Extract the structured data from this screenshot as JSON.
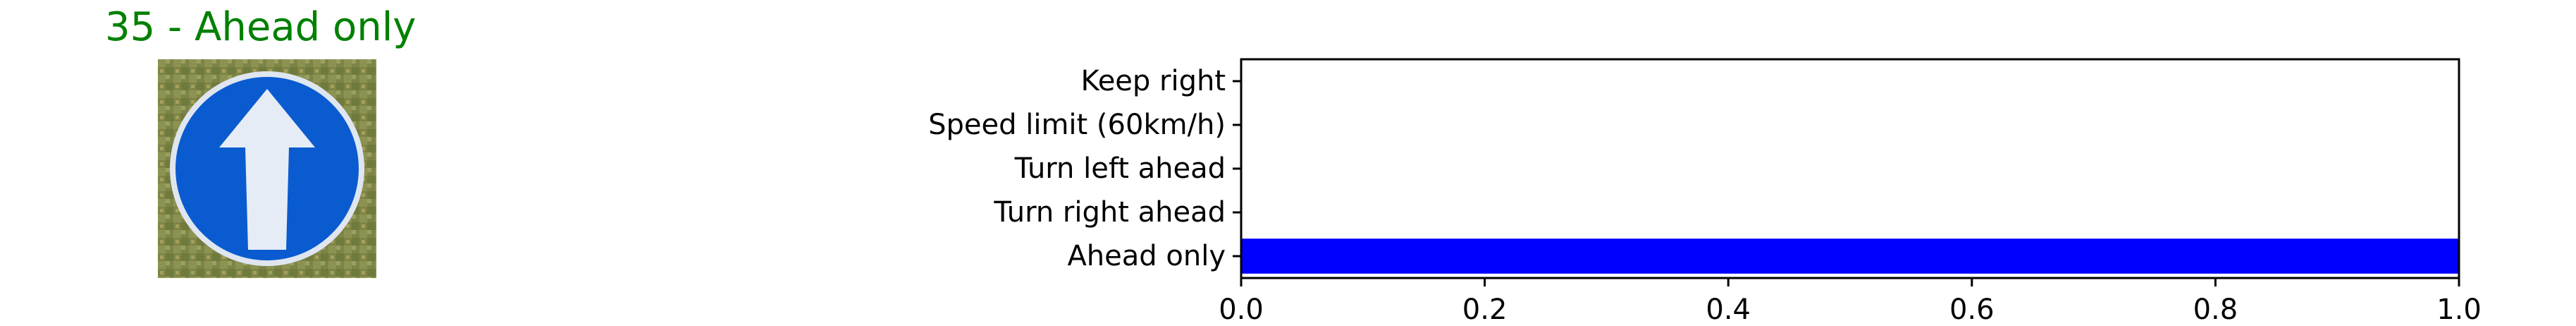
{
  "prediction": {
    "title": "35 - Ahead only",
    "title_color": "#008000"
  },
  "sign_image": {
    "icon": "ahead-only-sign-icon",
    "sign_color": "#0a5bd0",
    "arrow_color": "#e6ecf5",
    "background_color": "#7d8446"
  },
  "chart_data": {
    "type": "bar",
    "orientation": "horizontal",
    "title": "",
    "xlabel": "",
    "ylabel": "",
    "categories": [
      "Keep right",
      "Speed limit (60km/h)",
      "Turn left ahead",
      "Turn right ahead",
      "Ahead only"
    ],
    "values": [
      0.0,
      0.0,
      0.0,
      0.0,
      1.0
    ],
    "xlim": [
      0,
      1
    ],
    "x_ticks": [
      "0.0",
      "0.2",
      "0.4",
      "0.6",
      "0.8",
      "1.0"
    ],
    "bar_color": "#0000ff",
    "grid": false,
    "legend": "none"
  }
}
